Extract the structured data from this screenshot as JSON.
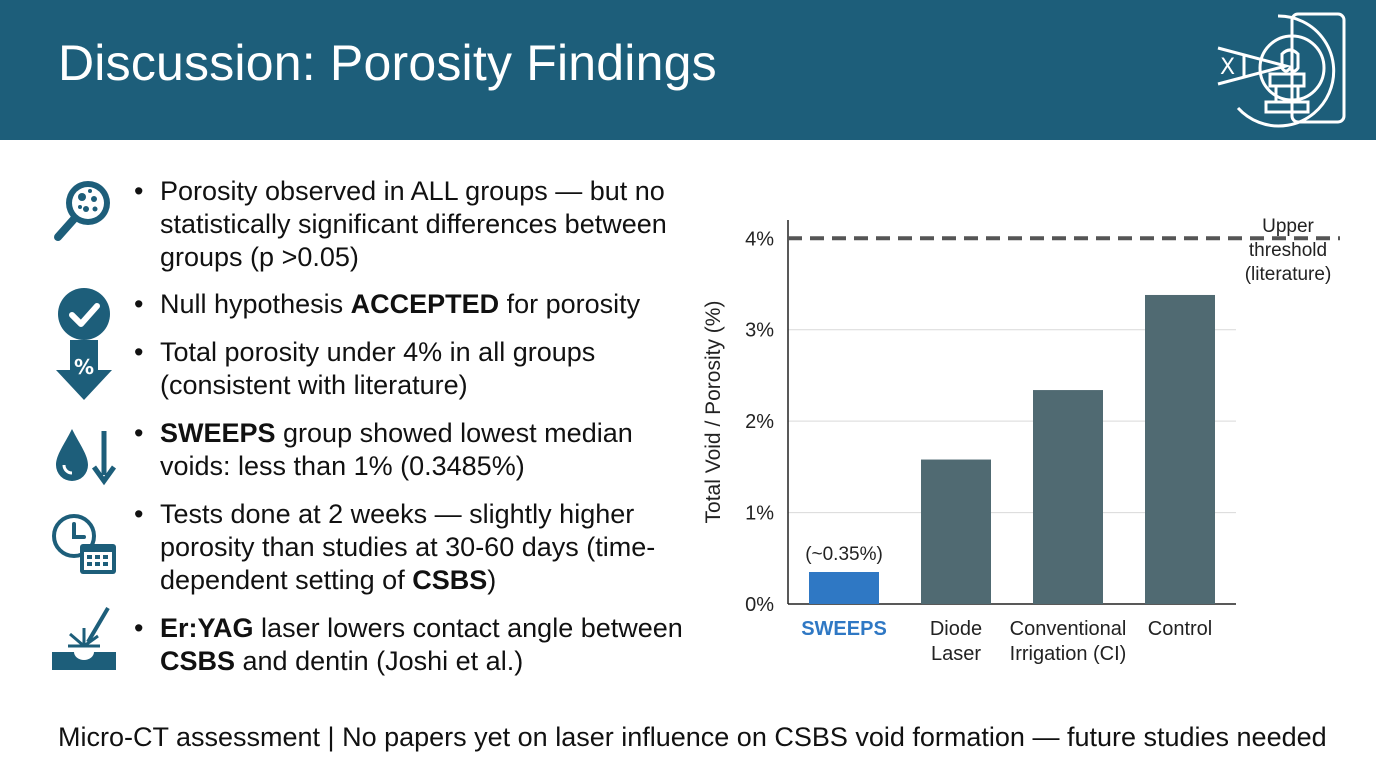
{
  "slide": {
    "title": "Discussion: Porosity Findings",
    "footer": "Micro-CT assessment | No papers yet on laser influence on CSBS void formation — future studies needed"
  },
  "header_icon": {
    "name": "micro-ct-scanner-icon",
    "text": "X"
  },
  "bullets": [
    {
      "icon": "magnifier-porosity-icon",
      "parts": [
        {
          "text": "Porosity observed in ALL groups — but no statistically significant differences between groups (p >0.05)",
          "bold": false
        }
      ]
    },
    {
      "icon": "check-circle-icon",
      "parts": [
        {
          "text": "Null hypothesis ",
          "bold": false
        },
        {
          "text": "ACCEPTED",
          "bold": true
        },
        {
          "text": " for porosity",
          "bold": false
        }
      ]
    },
    {
      "icon": "percent-down-arrow-icon",
      "parts": [
        {
          "text": "Total porosity under 4% in all groups (consistent with literature)",
          "bold": false
        }
      ]
    },
    {
      "icon": "droplet-down-arrow-icon",
      "parts": [
        {
          "text": "SWEEPS",
          "bold": true
        },
        {
          "text": " group showed lowest median voids: less than 1% (0.3485%)",
          "bold": false
        }
      ]
    },
    {
      "icon": "clock-calendar-icon",
      "parts": [
        {
          "text": "Tests done at 2 weeks — slightly higher porosity than studies at 30-60 days (time-dependent setting of ",
          "bold": false
        },
        {
          "text": "CSBS",
          "bold": true
        },
        {
          "text": ")",
          "bold": false
        }
      ]
    },
    {
      "icon": "laser-surface-icon",
      "parts": [
        {
          "text": "Er:YAG",
          "bold": true
        },
        {
          "text": " laser lowers contact angle between ",
          "bold": false
        },
        {
          "text": "CSBS",
          "bold": true
        },
        {
          "text": " and dentin (Joshi et al.)",
          "bold": false
        }
      ]
    }
  ],
  "chart_data": {
    "type": "bar",
    "ylabel": "Total Void / Porosity (%)",
    "categories": [
      "SWEEPS",
      "Diode Laser",
      "Conventional Irrigation (CI)",
      "Control"
    ],
    "category_lines": [
      [
        "SWEEPS"
      ],
      [
        "Diode",
        "Laser"
      ],
      [
        "Conventional",
        "Irrigation (CI)"
      ],
      [
        "Control"
      ]
    ],
    "values": [
      0.35,
      1.58,
      2.34,
      3.38
    ],
    "highlight_index": 0,
    "data_labels": [
      "(~0.35%)",
      "",
      "",
      ""
    ],
    "ylim": [
      0,
      4.2
    ],
    "yticks": [
      0,
      1,
      2,
      3,
      4
    ],
    "ytick_labels": [
      "0%",
      "1%",
      "2%",
      "3%",
      "4%"
    ],
    "grid": true,
    "reference_line": {
      "value": 4,
      "label_lines": [
        "Upper",
        "threshold",
        "(literature)"
      ],
      "style": "dashed"
    },
    "colors": {
      "bar": "#506a72",
      "highlight": "#2f78c4",
      "highlight_label": "#2f78c4",
      "reference": "#555555",
      "grid": "#d9d9d9",
      "axis": "#222222"
    }
  }
}
